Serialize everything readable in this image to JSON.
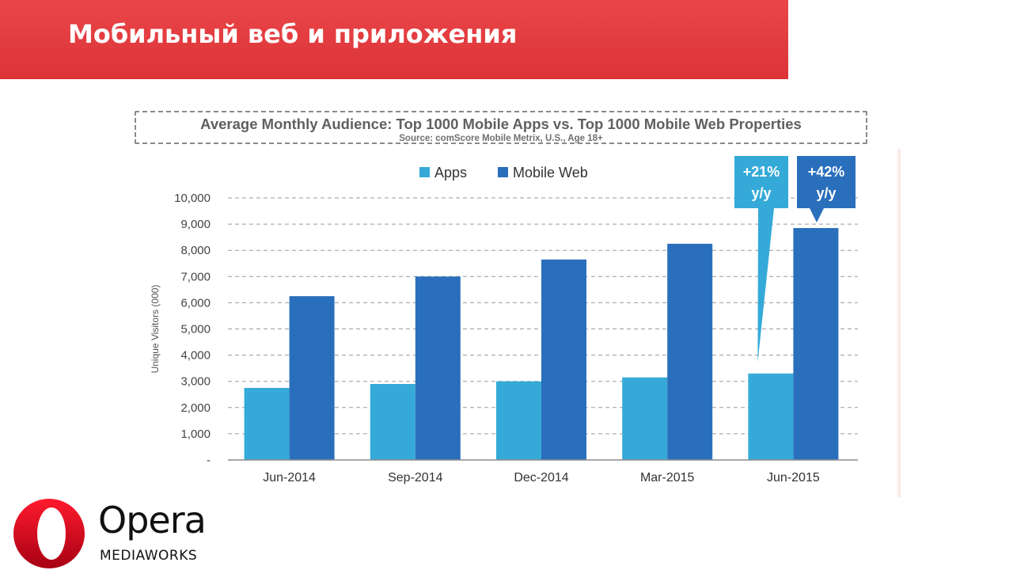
{
  "header": {
    "title": "Мобильный веб и приложения",
    "background_color": "#e8363a"
  },
  "logo": {
    "wordmark": "Opera",
    "subtitle": "MEDIAWORKS",
    "icon": "opera-o-icon",
    "color": "#e2231a"
  },
  "chart_data": {
    "type": "bar",
    "title": "Average Monthly Audience: Top 1000 Mobile Apps vs. Top 1000 Mobile Web Properties",
    "subtitle": "Source: comScore Mobile Metrix, U.S., Age 18+",
    "ylabel": "Unique Visitors (000)",
    "xlabel": "",
    "categories": [
      "Jun-2014",
      "Sep-2014",
      "Dec-2014",
      "Mar-2015",
      "Jun-2015"
    ],
    "series": [
      {
        "name": "Apps",
        "color": "#35aad8",
        "values": [
          2750,
          2900,
          3000,
          3150,
          3300
        ]
      },
      {
        "name": "Mobile Web",
        "color": "#2a6fbc",
        "values": [
          6250,
          7000,
          7650,
          8250,
          8850
        ]
      }
    ],
    "ylim": [
      0,
      10000
    ],
    "yticks": [
      "-",
      "1,000",
      "2,000",
      "3,000",
      "4,000",
      "5,000",
      "6,000",
      "7,000",
      "8,000",
      "9,000",
      "10,000"
    ],
    "grid": true,
    "legend_position": "top-center",
    "annotations": [
      {
        "series": "Apps",
        "category": "Jun-2015",
        "line1": "+21%",
        "line2": "y/y",
        "color": "#35aad8"
      },
      {
        "series": "Mobile Web",
        "category": "Jun-2015",
        "line1": "+42%",
        "line2": "y/y",
        "color": "#2a6fbc"
      }
    ]
  }
}
